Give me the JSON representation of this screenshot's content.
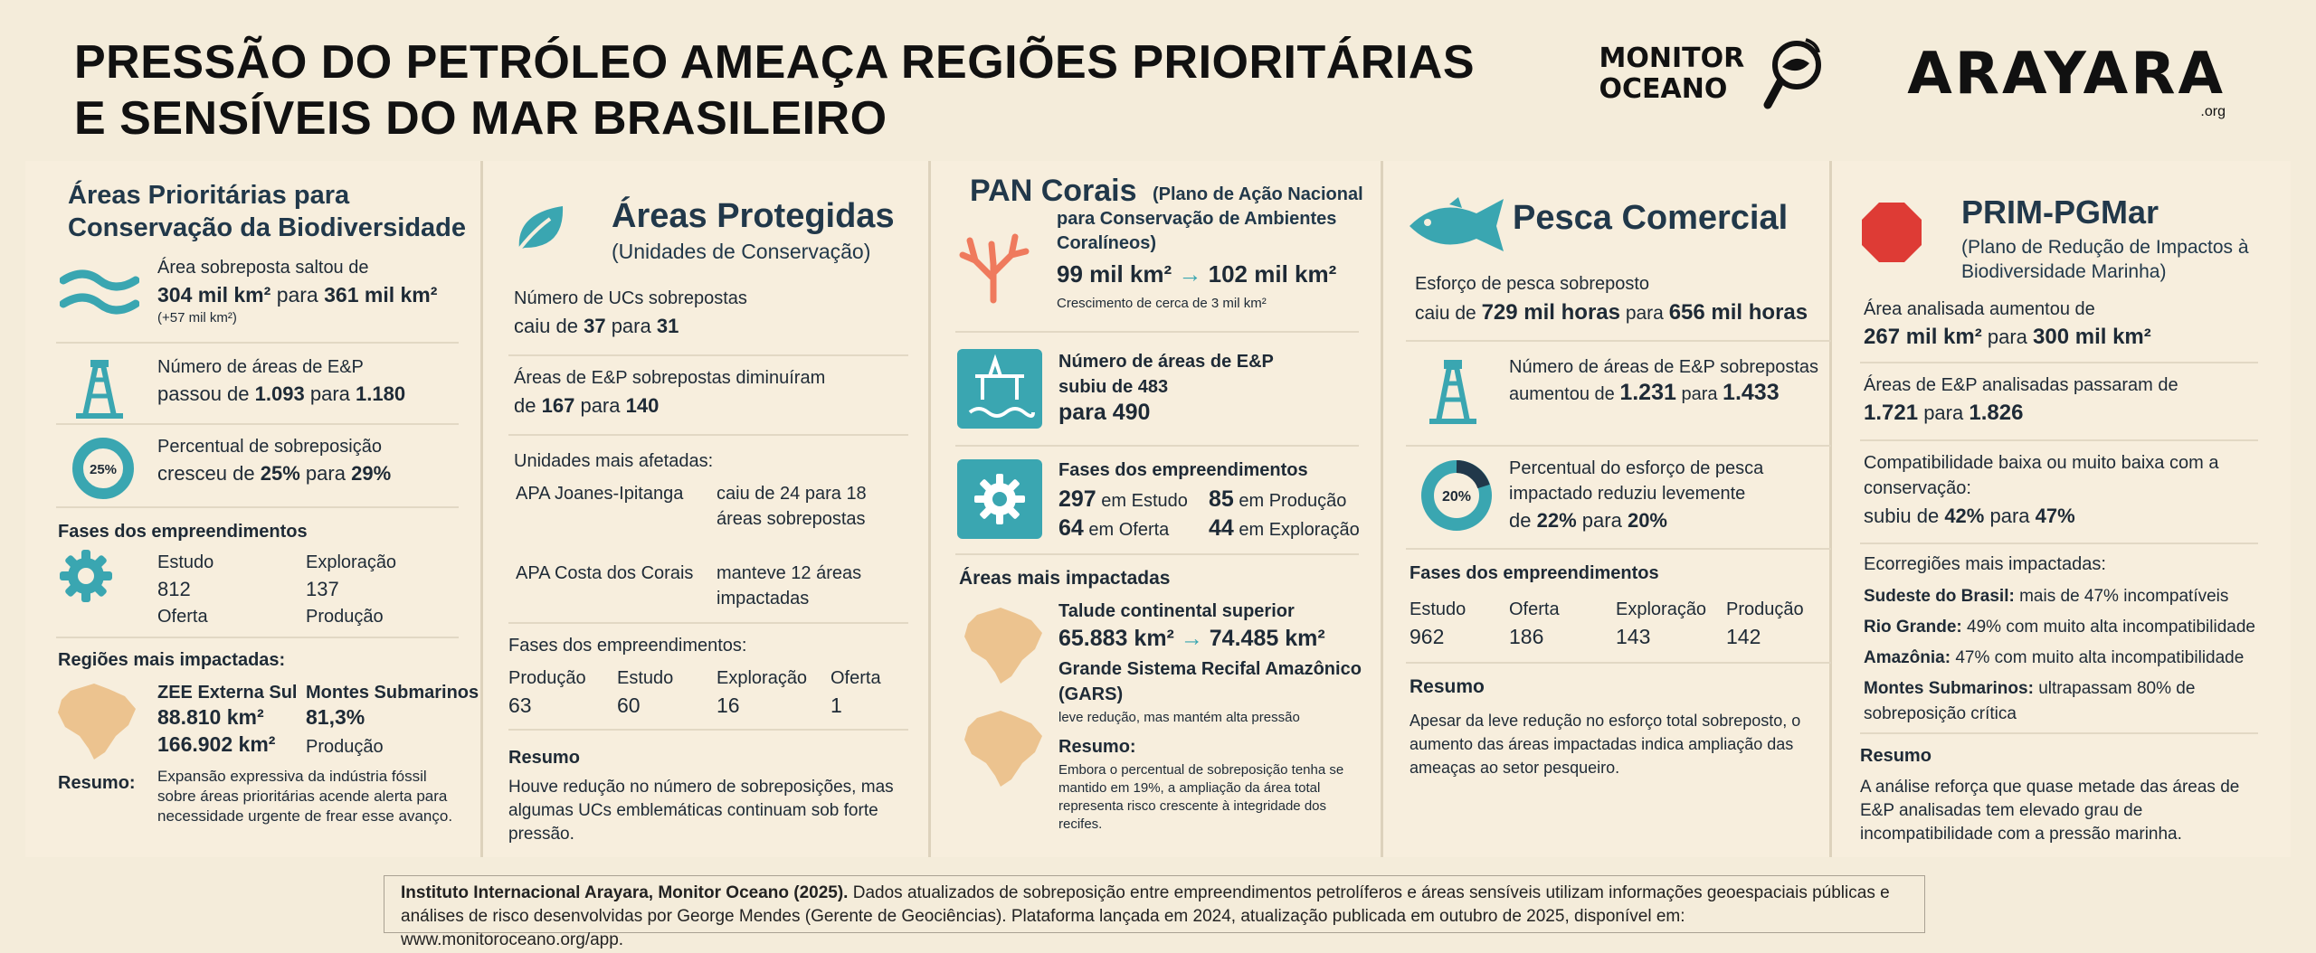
{
  "header": {
    "title_line1": "PRESSÃO DO PETRÓLEO AMEAÇA REGIÕES PRIORITÁRIAS",
    "title_line2": "E SENSÍVEIS DO MAR BRASILEIRO"
  },
  "logos": {
    "monitor_line1": "MONITOR",
    "monitor_line2": "OCEANO",
    "arayara": "ARAYARA",
    "arayara_suffix": ".org"
  },
  "col1": {
    "title": "Áreas Prioritárias para Conservação da Biodiversidade",
    "area_label": "Área sobreposta saltou de",
    "area_from": "304 mil km²",
    "para": "para",
    "area_to": "361 mil km²",
    "area_delta": "(+57 mil km²)",
    "ep_label": "Número de áreas de E&P",
    "ep_prefix": "passou de",
    "ep_from": "1.093",
    "ep_to": "1.180",
    "pct_label": "Percentual de sobreposição",
    "pct_prefix": "cresceu de",
    "pct_from": "25%",
    "pct_to": "29%",
    "donut_label": "25%",
    "phases_title": "Fases dos empreendimentos",
    "phases": [
      {
        "label": "Estudo",
        "value": "812"
      },
      {
        "label": "Exploração",
        "value": "137"
      },
      {
        "label": "Oferta",
        "value": ""
      },
      {
        "label": "Produção",
        "value": ""
      }
    ],
    "regions_title": "Regiões mais impactadas:",
    "regions": [
      {
        "name": "ZEE Externa Sul",
        "v1": "88.810 km²",
        "v2": "166.902 km²"
      },
      {
        "name": "Montes Submarinos",
        "v1": "81,3%",
        "v2": "Produção"
      }
    ],
    "summary_label": "Resumo:",
    "summary": "Expansão expressiva da indústria fóssil sobre áreas prioritárias acende alerta para necessidade urgente de frear esse avanço."
  },
  "col2": {
    "title": "Áreas Protegidas",
    "subtitle": "(Unidades de Conservação)",
    "ucs_label": "Número de UCs sobrepostas",
    "ucs_prefix": "caiu de",
    "ucs_from": "37",
    "ucs_to": "31",
    "ep_label": "Áreas de E&P sobrepostas diminuíram",
    "ep_prefix": "de",
    "ep_from": "167",
    "ep_to": "140",
    "affected_title": "Unidades mais afetadas:",
    "affected": [
      {
        "name": "APA Joanes-Ipitanga",
        "desc": "caiu de 24 para 18 áreas sobrepostas"
      },
      {
        "name": "APA Costa dos Corais",
        "desc": "manteve 12 áreas impactadas"
      }
    ],
    "phases_title": "Fases dos empreendimentos:",
    "phases": [
      {
        "label": "Produção",
        "value": "63"
      },
      {
        "label": "Estudo",
        "value": "60"
      },
      {
        "label": "Exploração",
        "value": "16"
      },
      {
        "label": "Oferta",
        "value": "1"
      }
    ],
    "summary_title": "Resumo",
    "summary": "Houve redução no número de sobreposições, mas algumas UCs emblemáticas continuam sob forte pressão."
  },
  "col3": {
    "title": "PAN Corais",
    "subtitle": "(Plano de Ação Nacional para Conservação de Ambientes Coralíneos)",
    "area_from": "99 mil km²",
    "area_to": "102 mil km²",
    "growth_note": "Crescimento de cerca de 3 mil km²",
    "ep_label": "Número de áreas de E&P subiu de 483",
    "ep_to": "para 490",
    "phases_title": "Fases dos empreendimentos",
    "phases": [
      {
        "value": "297",
        "label": "em Estudo"
      },
      {
        "value": "85",
        "label": "em Produção"
      },
      {
        "value": "64",
        "label": "em Oferta"
      },
      {
        "value": "44",
        "label": "em Exploração"
      }
    ],
    "impacted_title": "Áreas mais impactadas",
    "talude_title": "Talude continental superior",
    "talude_from": "65.883 km²",
    "talude_to": "74.485 km²",
    "gars_title": "Grande Sistema Recifal Amazônico (GARS)",
    "gars_note": "leve redução, mas mantém alta pressão",
    "summary_title": "Resumo:",
    "summary": "Embora o percentual de sobreposição tenha se mantido em 19%, a ampliação da área total representa risco crescente à integridade dos recifes."
  },
  "col4": {
    "title": "Pesca Comercial",
    "effort_label": "Esforço de pesca sobreposto",
    "effort_prefix": "caiu de",
    "effort_from": "729 mil horas",
    "effort_to": "656 mil horas",
    "ep_label": "Número de áreas de E&P sobrepostas aumentou de",
    "ep_from": "1.231",
    "ep_to": "1.433",
    "pct_label": "Percentual do esforço de pesca impactado reduziu levemente",
    "pct_from": "22%",
    "pct_to": "20%",
    "donut_label": "20%",
    "phases_title": "Fases dos empreendimentos",
    "phases": [
      {
        "label": "Estudo",
        "value": "962"
      },
      {
        "label": "Oferta",
        "value": "186"
      },
      {
        "label": "Exploração",
        "value": "143"
      },
      {
        "label": "Produção",
        "value": "142"
      }
    ],
    "summary_title": "Resumo",
    "summary": "Apesar da leve redução no esforço total sobreposto, o aumento das áreas impactadas indica ampliação das ameaças ao setor pesqueiro."
  },
  "col5": {
    "title": "PRIM-PGMar",
    "subtitle": "(Plano de Redução de Impactos à Biodiversidade Marinha)",
    "area_label": "Área analisada aumentou de",
    "area_from": "267 mil km²",
    "area_to": "300 mil km²",
    "ep_label": "Áreas de E&P analisadas passaram de",
    "ep_from": "1.721",
    "ep_to": "1.826",
    "compat_label": "Compatibilidade baixa ou muito baixa com a conservação:",
    "compat_prefix": "subiu de",
    "compat_from": "42%",
    "compat_to": "47%",
    "eco_title": "Ecorregiões mais impactadas:",
    "eco": [
      {
        "name": "Sudeste do Brasil:",
        "desc": "mais de 47% incompatíveis"
      },
      {
        "name": "Rio Grande:",
        "desc": "49% com muito alta incompatibilidade"
      },
      {
        "name": "Amazônia:",
        "desc": "47% com muito alta incompatibilidade"
      },
      {
        "name": "Montes Submarinos:",
        "desc": "ultrapassam 80% de sobreposição crítica"
      }
    ],
    "summary_title": "Resumo",
    "summary": "A análise reforça que quase metade das áreas de E&P analisadas tem elevado grau de incompatibilidade com a pressão marinha."
  },
  "footer": {
    "source_bold": "Instituto Internacional Arayara, Monitor Oceano (2025).",
    "source_text": "Dados atualizados de sobreposição entre empreendimentos petrolíferos e áreas sensíveis utilizam informações geoespaciais públicas e análises de risco desenvolvidas por George Mendes (Gerente de Geociências). Plataforma lançada em 2024, atualização publicada em outubro de 2025, disponível em: www.monitoroceano.org/app."
  },
  "colors": {
    "teal": "#3aa6b1",
    "coral": "#ef7a5d",
    "sand": "#ecc38f",
    "red_stop": "#de3b35",
    "navy": "#21384a"
  }
}
